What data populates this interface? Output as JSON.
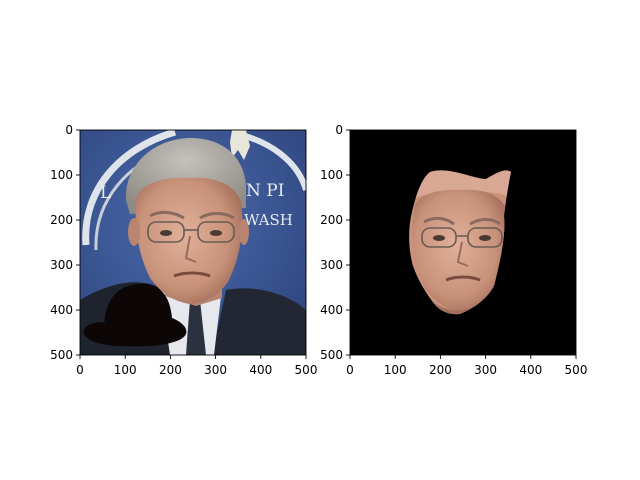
{
  "chart_data": [
    {
      "type": "image",
      "title": "",
      "xlabel": "",
      "ylabel": "",
      "xlim": [
        0,
        500
      ],
      "ylim": [
        500,
        0
      ],
      "xticks": [
        0,
        100,
        200,
        300,
        400,
        500
      ],
      "yticks": [
        0,
        100,
        200,
        300,
        400,
        500
      ],
      "grid": false,
      "content": "original photo with black hat overlay"
    },
    {
      "type": "image",
      "title": "",
      "xlabel": "",
      "ylabel": "",
      "xlim": [
        0,
        500
      ],
      "ylim": [
        500,
        0
      ],
      "xticks": [
        0,
        100,
        200,
        300,
        400,
        500
      ],
      "yticks": [
        0,
        100,
        200,
        300,
        400,
        500
      ],
      "grid": false,
      "content": "segmented face on black background"
    }
  ],
  "colors": {
    "background_blue": "#3d5a98",
    "seal_white": "#e8ecf0",
    "jacket": "#1e232e",
    "shirt": "#e6e8ee",
    "skin": "#cf9a82",
    "hair": "#aeaca8",
    "hat": "#0c0606",
    "mask_bg": "#000000"
  }
}
